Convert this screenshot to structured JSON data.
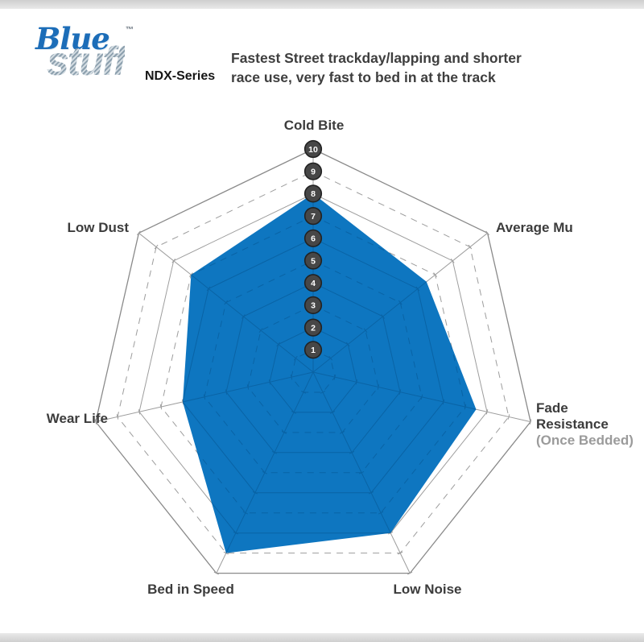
{
  "header": {
    "logo": {
      "brand_line1": "Blue",
      "trademark": "TM",
      "brand_line2": "stuff",
      "series": "NDX-Series"
    },
    "description_line1": "Fastest Street trackday/lapping and shorter",
    "description_line2": "race use, very fast to bed in at the track"
  },
  "chart_data": {
    "type": "radar",
    "title": "Bluestuff NDX-Series brake pad performance",
    "categories": [
      "Cold Bite",
      "Average Mu",
      "Fade Resistance (Once Bedded)",
      "Low Noise",
      "Bed in Speed",
      "Wear Life",
      "Low Dust"
    ],
    "values": [
      8,
      6.5,
      7.5,
      8,
      9,
      6,
      7
    ],
    "axes": [
      {
        "label": "Cold Bite"
      },
      {
        "label": "Average Mu"
      },
      {
        "label": "Fade Resistance",
        "line1": "Fade",
        "line2": "Resistance",
        "sub_label": "(Once Bedded)"
      },
      {
        "label": "Low Noise"
      },
      {
        "label": "Bed in Speed"
      },
      {
        "label": "Wear Life"
      },
      {
        "label": "Low Dust"
      }
    ],
    "scale": {
      "min": 0,
      "max": 10,
      "tick_labels": [
        "1",
        "2",
        "3",
        "4",
        "5",
        "6",
        "7",
        "8",
        "9",
        "10"
      ]
    },
    "layout_hints": {
      "rings": 10,
      "solid_rings": "even",
      "dashed_rings": "odd",
      "start_axis": "top",
      "direction": "clockwise",
      "tick_badges_on_axis": "Cold Bite"
    },
    "colors": {
      "fill": "#0e76c0",
      "grid": "#9d9d9d",
      "grid_outer": "#8a8a8a",
      "inner_grid_overlay": "#085a97",
      "badge_bg": "#474747",
      "badge_border": "#222222",
      "badge_text": "#ffffff",
      "label_text": "#3c3c3c",
      "sub_label_text": "#9b9b9b"
    }
  }
}
